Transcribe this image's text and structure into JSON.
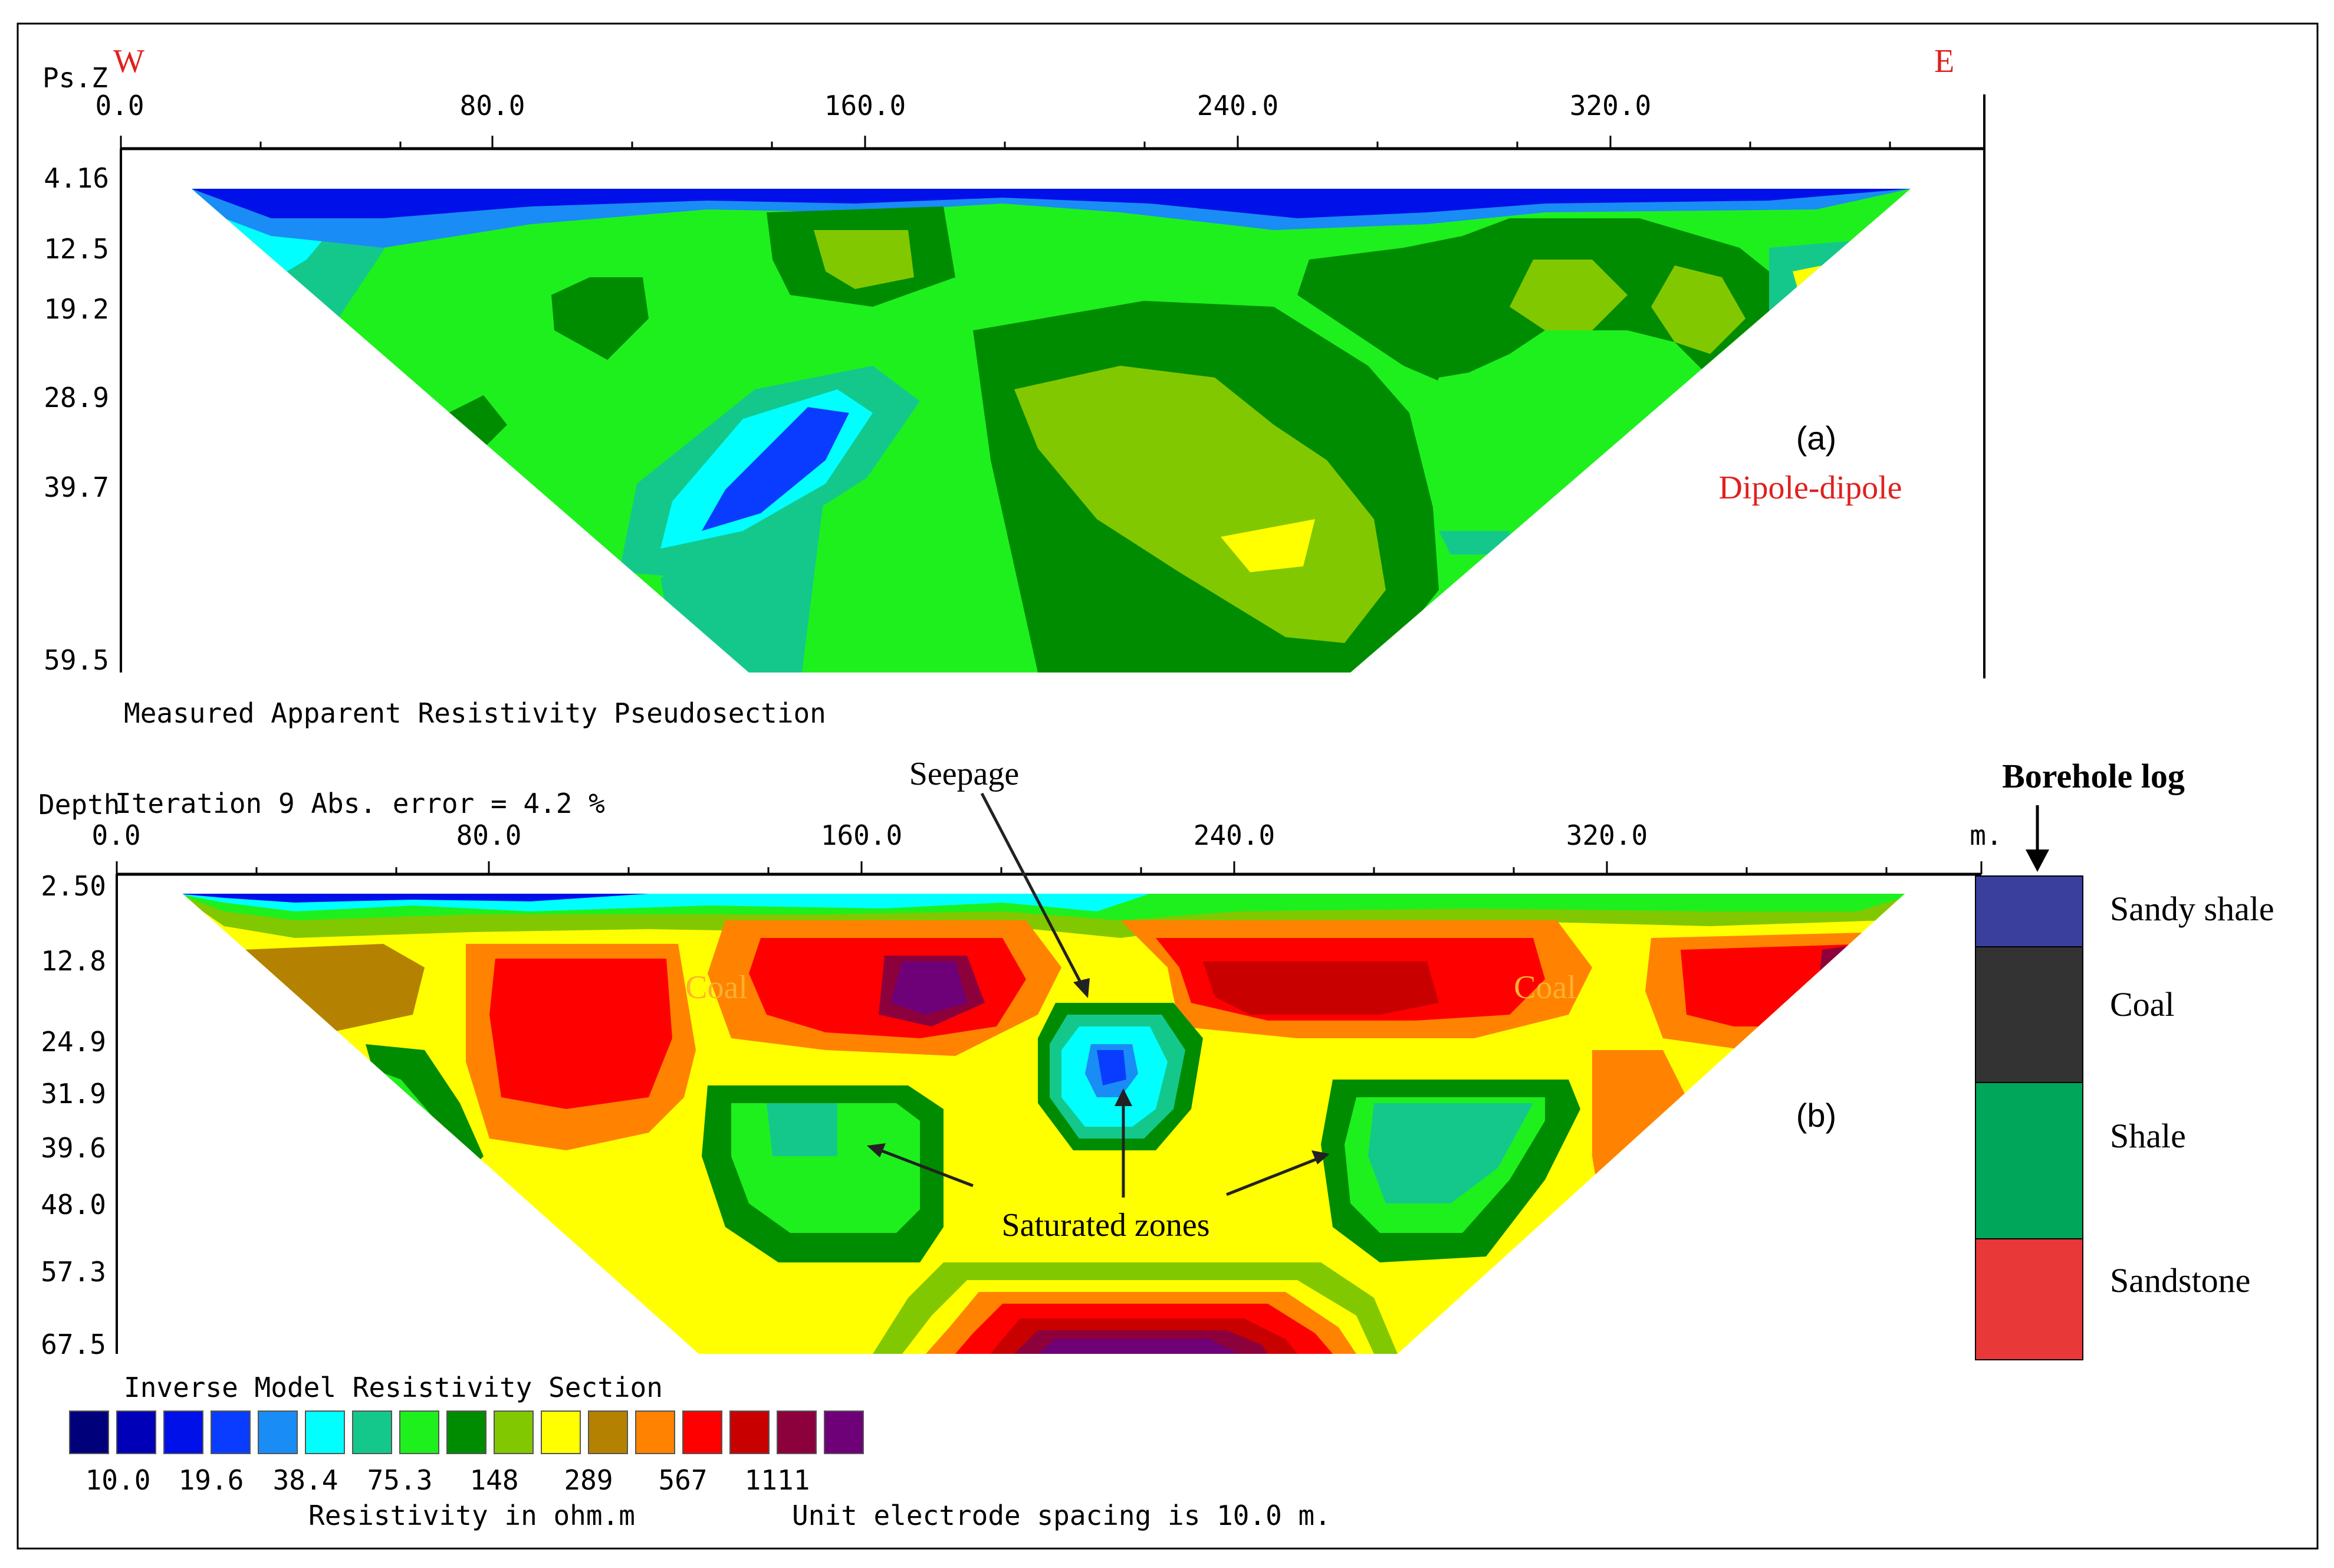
{
  "panel_a": {
    "y_label": "Ps.Z",
    "west": "W",
    "east": "E",
    "x_ticks": [
      "0.0",
      "80.0",
      "160.0",
      "240.0",
      "320.0"
    ],
    "depth_ticks": [
      "4.16",
      "12.5",
      "19.2",
      "28.9",
      "39.7",
      "59.5"
    ],
    "panel_label": "(a)",
    "array": "Dipole-dipole",
    "caption": "Measured Apparent Resistivity Pseudosection"
  },
  "panel_b": {
    "y_label": "Depth",
    "iteration": "Iteration 9 Abs. error = 4.2 %",
    "x_ticks": [
      "0.0",
      "80.0",
      "160.0",
      "240.0",
      "320.0"
    ],
    "x_unit": "m.",
    "depth_ticks": [
      "2.50",
      "12.8",
      "24.9",
      "31.9",
      "39.6",
      "48.0",
      "57.3",
      "67.5"
    ],
    "panel_label": "(b)",
    "seepage": "Seepage",
    "saturated": "Saturated zones",
    "coal_left": "Coal",
    "coal_right": "Coal",
    "caption": "Inverse Model Resistivity Section"
  },
  "scale": {
    "colors": [
      "#00007a",
      "#0000b8",
      "#0010e8",
      "#0a3cff",
      "#1a8cf5",
      "#00ffff",
      "#14c88c",
      "#1ef01e",
      "#008c00",
      "#82c800",
      "#ffff00",
      "#b48200",
      "#ff8200",
      "#ff0000",
      "#c80000",
      "#8c003c",
      "#6e0078"
    ],
    "labels": [
      "10.0",
      "19.6",
      "38.4",
      "75.3",
      "148",
      "289",
      "567",
      "1111"
    ],
    "unit_label": "Resistivity in ohm.m",
    "spacing": "Unit electrode spacing is 10.0 m."
  },
  "borehole": {
    "title": "Borehole log",
    "layers": [
      {
        "name": "Sandy shale",
        "color": "#3a3f9e"
      },
      {
        "name": "Coal",
        "color": "#333333"
      },
      {
        "name": "Shale",
        "color": "#00a65a"
      },
      {
        "name": "Sandstone",
        "color": "#e83838"
      }
    ]
  }
}
